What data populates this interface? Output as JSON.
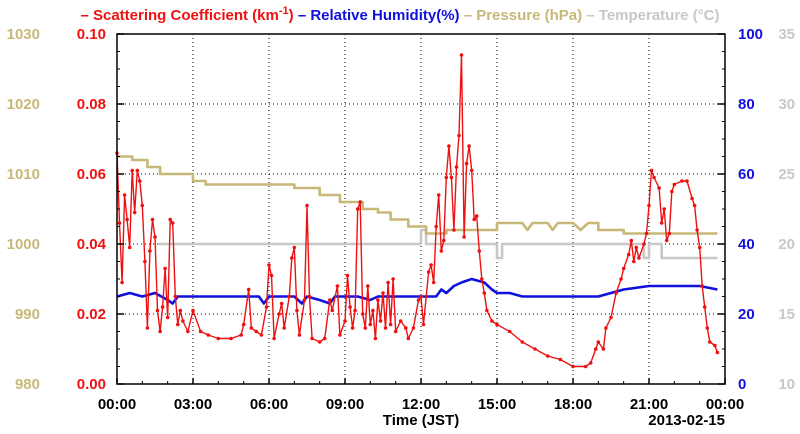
{
  "chart_data": {
    "type": "line",
    "legend": {
      "placement": "top",
      "items": [
        {
          "key": "scat",
          "prefix": "– ",
          "text": "Scattering Coefficient (km",
          "sup": "-1",
          "suffix": ")",
          "color": "#ee1111"
        },
        {
          "key": "rh",
          "prefix": " – ",
          "text": "Relative Humidity(%)",
          "color": "#1111dd"
        },
        {
          "key": "pres",
          "prefix": " – ",
          "text": "Pressure (hPa)",
          "color": "#c8b878"
        },
        {
          "key": "temp",
          "prefix": " – ",
          "text": "Temperature (°C)",
          "color": "#c8c8c8"
        }
      ]
    },
    "xlabel": "Time (JST)",
    "date_label": "2013-02-15",
    "x_ticks": [
      "00:00",
      "03:00",
      "06:00",
      "09:00",
      "12:00",
      "15:00",
      "18:00",
      "21:00",
      "00:00"
    ],
    "xlim": [
      0,
      24
    ],
    "grid": true,
    "axes": {
      "pressure": {
        "side": "left-outer",
        "color": "#c8b878",
        "ylim": [
          980,
          1030
        ],
        "ticks": [
          "980",
          "990",
          "1000",
          "1010",
          "1020",
          "1030"
        ]
      },
      "scattering": {
        "side": "left-inner",
        "color": "#ee1111",
        "ylim": [
          0,
          0.1
        ],
        "ticks": [
          "0.00",
          "0.02",
          "0.04",
          "0.06",
          "0.08",
          "0.10"
        ]
      },
      "humidity": {
        "side": "right-inner",
        "color": "#1111dd",
        "ylim": [
          0,
          100
        ],
        "ticks": [
          "0",
          "20",
          "40",
          "60",
          "80",
          "100"
        ]
      },
      "temperature": {
        "side": "right-outer",
        "color": "#c8c8c8",
        "ylim": [
          10,
          35
        ],
        "ticks": [
          "10",
          "15",
          "20",
          "25",
          "30",
          "35"
        ]
      }
    },
    "series": [
      {
        "key": "scat",
        "axis": "scattering",
        "color": "#ee1111",
        "markers": true,
        "points": [
          [
            0.0,
            0.066
          ],
          [
            0.1,
            0.046
          ],
          [
            0.2,
            0.029
          ],
          [
            0.3,
            0.054
          ],
          [
            0.4,
            0.047
          ],
          [
            0.5,
            0.039
          ],
          [
            0.6,
            0.061
          ],
          [
            0.7,
            0.049
          ],
          [
            0.8,
            0.061
          ],
          [
            0.9,
            0.058
          ],
          [
            1.0,
            0.051
          ],
          [
            1.1,
            0.035
          ],
          [
            1.2,
            0.016
          ],
          [
            1.3,
            0.038
          ],
          [
            1.4,
            0.047
          ],
          [
            1.5,
            0.042
          ],
          [
            1.6,
            0.021
          ],
          [
            1.7,
            0.015
          ],
          [
            1.8,
            0.022
          ],
          [
            1.9,
            0.033
          ],
          [
            2.0,
            0.019
          ],
          [
            2.1,
            0.047
          ],
          [
            2.2,
            0.046
          ],
          [
            2.3,
            0.025
          ],
          [
            2.4,
            0.017
          ],
          [
            2.5,
            0.021
          ],
          [
            2.6,
            0.018
          ],
          [
            2.8,
            0.015
          ],
          [
            3.0,
            0.021
          ],
          [
            3.3,
            0.015
          ],
          [
            3.6,
            0.014
          ],
          [
            4.0,
            0.013
          ],
          [
            4.5,
            0.013
          ],
          [
            4.9,
            0.014
          ],
          [
            5.0,
            0.017
          ],
          [
            5.2,
            0.027
          ],
          [
            5.3,
            0.016
          ],
          [
            5.5,
            0.015
          ],
          [
            5.7,
            0.014
          ],
          [
            5.9,
            0.022
          ],
          [
            6.0,
            0.034
          ],
          [
            6.1,
            0.031
          ],
          [
            6.2,
            0.013
          ],
          [
            6.4,
            0.02
          ],
          [
            6.5,
            0.023
          ],
          [
            6.6,
            0.016
          ],
          [
            6.8,
            0.025
          ],
          [
            6.9,
            0.036
          ],
          [
            7.0,
            0.039
          ],
          [
            7.1,
            0.021
          ],
          [
            7.2,
            0.014
          ],
          [
            7.4,
            0.024
          ],
          [
            7.5,
            0.051
          ],
          [
            7.6,
            0.025
          ],
          [
            7.7,
            0.013
          ],
          [
            8.0,
            0.012
          ],
          [
            8.2,
            0.013
          ],
          [
            8.4,
            0.024
          ],
          [
            8.5,
            0.021
          ],
          [
            8.7,
            0.028
          ],
          [
            8.8,
            0.014
          ],
          [
            9.0,
            0.018
          ],
          [
            9.1,
            0.031
          ],
          [
            9.2,
            0.022
          ],
          [
            9.3,
            0.016
          ],
          [
            9.4,
            0.021
          ],
          [
            9.5,
            0.05
          ],
          [
            9.6,
            0.052
          ],
          [
            9.7,
            0.02
          ],
          [
            9.8,
            0.016
          ],
          [
            9.9,
            0.028
          ],
          [
            10.0,
            0.017
          ],
          [
            10.1,
            0.021
          ],
          [
            10.2,
            0.013
          ],
          [
            10.3,
            0.024
          ],
          [
            10.4,
            0.018
          ],
          [
            10.5,
            0.026
          ],
          [
            10.6,
            0.016
          ],
          [
            10.7,
            0.029
          ],
          [
            10.8,
            0.017
          ],
          [
            10.9,
            0.03
          ],
          [
            11.0,
            0.015
          ],
          [
            11.2,
            0.018
          ],
          [
            11.4,
            0.016
          ],
          [
            11.5,
            0.013
          ],
          [
            11.7,
            0.016
          ],
          [
            11.9,
            0.024
          ],
          [
            12.0,
            0.025
          ],
          [
            12.1,
            0.017
          ],
          [
            12.3,
            0.032
          ],
          [
            12.4,
            0.034
          ],
          [
            12.5,
            0.029
          ],
          [
            12.6,
            0.045
          ],
          [
            12.7,
            0.054
          ],
          [
            12.8,
            0.038
          ],
          [
            12.9,
            0.041
          ],
          [
            13.0,
            0.059
          ],
          [
            13.1,
            0.068
          ],
          [
            13.2,
            0.059
          ],
          [
            13.3,
            0.044
          ],
          [
            13.4,
            0.062
          ],
          [
            13.5,
            0.071
          ],
          [
            13.6,
            0.094
          ],
          [
            13.7,
            0.042
          ],
          [
            13.8,
            0.063
          ],
          [
            13.9,
            0.068
          ],
          [
            14.0,
            0.061
          ],
          [
            14.1,
            0.047
          ],
          [
            14.2,
            0.048
          ],
          [
            14.3,
            0.038
          ],
          [
            14.4,
            0.03
          ],
          [
            14.5,
            0.026
          ],
          [
            14.6,
            0.021
          ],
          [
            14.8,
            0.018
          ],
          [
            15.0,
            0.017
          ],
          [
            15.5,
            0.015
          ],
          [
            16.0,
            0.012
          ],
          [
            16.5,
            0.01
          ],
          [
            17.0,
            0.008
          ],
          [
            17.5,
            0.007
          ],
          [
            18.0,
            0.005
          ],
          [
            18.5,
            0.005
          ],
          [
            18.7,
            0.006
          ],
          [
            18.9,
            0.01
          ],
          [
            19.0,
            0.012
          ],
          [
            19.2,
            0.01
          ],
          [
            19.3,
            0.016
          ],
          [
            19.5,
            0.019
          ],
          [
            19.7,
            0.026
          ],
          [
            19.9,
            0.03
          ],
          [
            20.0,
            0.033
          ],
          [
            20.2,
            0.037
          ],
          [
            20.3,
            0.041
          ],
          [
            20.4,
            0.035
          ],
          [
            20.5,
            0.039
          ],
          [
            20.6,
            0.036
          ],
          [
            20.8,
            0.04
          ],
          [
            20.9,
            0.043
          ],
          [
            21.0,
            0.051
          ],
          [
            21.1,
            0.061
          ],
          [
            21.2,
            0.059
          ],
          [
            21.4,
            0.056
          ],
          [
            21.5,
            0.046
          ],
          [
            21.6,
            0.05
          ],
          [
            21.7,
            0.041
          ],
          [
            21.8,
            0.043
          ],
          [
            21.9,
            0.055
          ],
          [
            22.0,
            0.057
          ],
          [
            22.3,
            0.058
          ],
          [
            22.5,
            0.058
          ],
          [
            22.7,
            0.053
          ],
          [
            22.8,
            0.051
          ],
          [
            22.9,
            0.044
          ],
          [
            23.0,
            0.039
          ],
          [
            23.1,
            0.028
          ],
          [
            23.2,
            0.022
          ],
          [
            23.3,
            0.016
          ],
          [
            23.4,
            0.012
          ],
          [
            23.6,
            0.011
          ],
          [
            23.7,
            0.009
          ]
        ]
      },
      {
        "key": "rh",
        "axis": "humidity",
        "color": "#1111dd",
        "markers": false,
        "points": [
          [
            0.0,
            25
          ],
          [
            0.5,
            26
          ],
          [
            1.0,
            25
          ],
          [
            1.5,
            26
          ],
          [
            2.0,
            24
          ],
          [
            2.2,
            23
          ],
          [
            2.4,
            25
          ],
          [
            3.0,
            25
          ],
          [
            4.0,
            25
          ],
          [
            5.0,
            25
          ],
          [
            5.6,
            25
          ],
          [
            5.8,
            23
          ],
          [
            6.0,
            25
          ],
          [
            7.0,
            25
          ],
          [
            7.3,
            23
          ],
          [
            7.5,
            25
          ],
          [
            8.0,
            24
          ],
          [
            8.4,
            23
          ],
          [
            8.6,
            25
          ],
          [
            9.5,
            25
          ],
          [
            10.0,
            24
          ],
          [
            10.3,
            25
          ],
          [
            11.0,
            25
          ],
          [
            12.0,
            25
          ],
          [
            12.6,
            25
          ],
          [
            12.8,
            27
          ],
          [
            13.0,
            26
          ],
          [
            13.3,
            28
          ],
          [
            13.6,
            29
          ],
          [
            14.0,
            30
          ],
          [
            14.5,
            29
          ],
          [
            14.8,
            27
          ],
          [
            15.0,
            26
          ],
          [
            15.5,
            26
          ],
          [
            16.0,
            25
          ],
          [
            17.0,
            25
          ],
          [
            18.0,
            25
          ],
          [
            19.0,
            25
          ],
          [
            19.5,
            26
          ],
          [
            20.0,
            27
          ],
          [
            21.0,
            28
          ],
          [
            22.0,
            28
          ],
          [
            23.0,
            28
          ],
          [
            23.7,
            27
          ]
        ]
      },
      {
        "key": "pres",
        "axis": "pressure",
        "color": "#c8b878",
        "markers": false,
        "points": [
          [
            0.0,
            1012.5
          ],
          [
            0.6,
            1012.5
          ],
          [
            0.6,
            1012.0
          ],
          [
            1.2,
            1012.0
          ],
          [
            1.2,
            1011.0
          ],
          [
            1.7,
            1011.0
          ],
          [
            1.7,
            1010.0
          ],
          [
            3.0,
            1010.0
          ],
          [
            3.0,
            1009.0
          ],
          [
            3.5,
            1009.0
          ],
          [
            3.5,
            1008.5
          ],
          [
            7.0,
            1008.5
          ],
          [
            7.0,
            1008.0
          ],
          [
            8.0,
            1008.0
          ],
          [
            8.0,
            1007.0
          ],
          [
            8.8,
            1007.0
          ],
          [
            8.8,
            1006.0
          ],
          [
            9.7,
            1006.0
          ],
          [
            9.7,
            1005.0
          ],
          [
            10.3,
            1005.0
          ],
          [
            10.3,
            1004.5
          ],
          [
            10.8,
            1004.5
          ],
          [
            10.8,
            1003.5
          ],
          [
            11.5,
            1003.5
          ],
          [
            11.5,
            1002.5
          ],
          [
            12.2,
            1002.5
          ],
          [
            12.2,
            1001.5
          ],
          [
            13.0,
            1001.5
          ],
          [
            13.0,
            1002.0
          ],
          [
            15.0,
            1002.0
          ],
          [
            15.0,
            1003.0
          ],
          [
            16.0,
            1003.0
          ],
          [
            16.2,
            1002.0
          ],
          [
            16.4,
            1003.0
          ],
          [
            17.0,
            1003.0
          ],
          [
            17.2,
            1002.0
          ],
          [
            17.4,
            1003.0
          ],
          [
            18.0,
            1003.0
          ],
          [
            18.3,
            1002.0
          ],
          [
            18.6,
            1003.0
          ],
          [
            19.0,
            1003.0
          ],
          [
            19.0,
            1002.0
          ],
          [
            20.0,
            1002.0
          ],
          [
            20.0,
            1001.5
          ],
          [
            23.7,
            1001.5
          ]
        ]
      },
      {
        "key": "temp",
        "axis": "temperature",
        "color": "#c8c8c8",
        "markers": false,
        "points": [
          [
            1.6,
            20.0
          ],
          [
            12.0,
            20.0
          ],
          [
            12.0,
            21.0
          ],
          [
            12.2,
            21.0
          ],
          [
            12.2,
            20.0
          ],
          [
            15.0,
            20.0
          ],
          [
            15.0,
            19.0
          ],
          [
            15.2,
            19.0
          ],
          [
            15.2,
            20.0
          ],
          [
            20.8,
            20.0
          ],
          [
            20.8,
            19.0
          ],
          [
            21.0,
            19.0
          ],
          [
            21.0,
            20.0
          ],
          [
            21.5,
            20.0
          ],
          [
            21.5,
            19.0
          ],
          [
            23.7,
            19.0
          ]
        ]
      }
    ]
  }
}
